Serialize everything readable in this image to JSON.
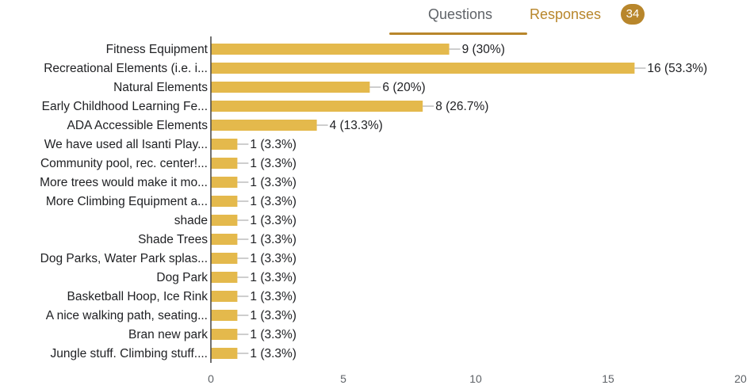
{
  "tabs": {
    "questions_label": "Questions",
    "responses_label": "Responses",
    "responses_count": "34"
  },
  "colors": {
    "bar": "#e4b94c",
    "accent": "#b8862b",
    "axis": "#444444",
    "connector": "#9e9e9e"
  },
  "chart_data": {
    "type": "bar",
    "orientation": "horizontal",
    "title": "",
    "xlabel": "",
    "ylabel": "",
    "xlim": [
      0,
      20
    ],
    "xticks": [
      0,
      5,
      10,
      15,
      20
    ],
    "grid": false,
    "legend": "none",
    "categories": [
      "Fitness Equipment",
      "Recreational Elements (i.e. i...",
      "Natural Elements",
      "Early Childhood Learning Fe...",
      "ADA Accessible Elements",
      "We have used all Isanti Play...",
      "Community pool, rec. center!...",
      "More trees would make it mo...",
      "More Climbing Equipment a...",
      "shade",
      "Shade Trees",
      "Dog Parks, Water Park splas...",
      "Dog Park",
      "Basketball Hoop, Ice Rink",
      "A nice walking path, seating...",
      "Bran new park",
      "Jungle stuff. Climbing stuff...."
    ],
    "values": [
      9,
      16,
      6,
      8,
      4,
      1,
      1,
      1,
      1,
      1,
      1,
      1,
      1,
      1,
      1,
      1,
      1
    ],
    "value_labels": [
      "9 (30%)",
      "16 (53.3%)",
      "6 (20%)",
      "8 (26.7%)",
      "4 (13.3%)",
      "1 (3.3%)",
      "1 (3.3%)",
      "1 (3.3%)",
      "1 (3.3%)",
      "1 (3.3%)",
      "1 (3.3%)",
      "1 (3.3%)",
      "1 (3.3%)",
      "1 (3.3%)",
      "1 (3.3%)",
      "1 (3.3%)",
      "1 (3.3%)"
    ]
  }
}
